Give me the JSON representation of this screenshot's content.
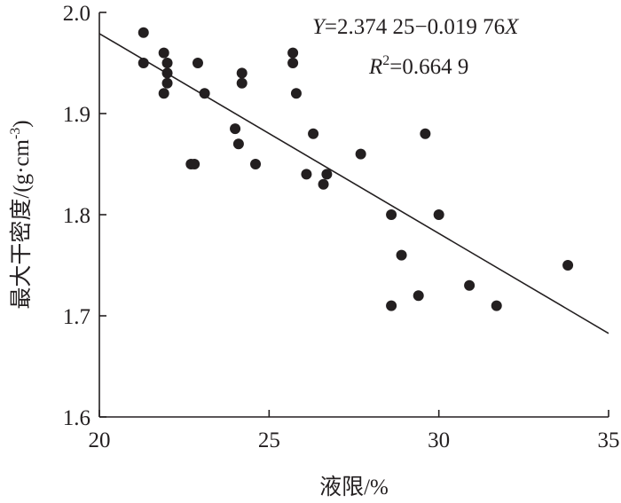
{
  "chart_data": {
    "type": "scatter",
    "xlabel": "液限/%",
    "ylabel": "最大干密度/(g·cm",
    "ylabel_sup": "-3",
    "ylabel_close": ")",
    "xlim": [
      20,
      35
    ],
    "ylim": [
      1.6,
      2.0
    ],
    "xticks": [
      "20",
      "25",
      "30",
      "35"
    ],
    "yticks": [
      "1.6",
      "1.7",
      "1.8",
      "1.9",
      "2.0"
    ],
    "grid": false,
    "legend": "none",
    "equation": {
      "y_var": "Y",
      "rhs_a": "=2.374 25−0.019 76",
      "x_var": "X",
      "r_var": "R",
      "r_sup": "2",
      "r_value": "=0.664 9"
    },
    "fit": {
      "intercept": 2.37425,
      "slope": -0.01976
    },
    "points": [
      {
        "x": 21.3,
        "y": 1.98
      },
      {
        "x": 21.3,
        "y": 1.95
      },
      {
        "x": 21.9,
        "y": 1.96
      },
      {
        "x": 22.0,
        "y": 1.95
      },
      {
        "x": 22.0,
        "y": 1.94
      },
      {
        "x": 22.0,
        "y": 1.93
      },
      {
        "x": 21.9,
        "y": 1.92
      },
      {
        "x": 22.9,
        "y": 1.95
      },
      {
        "x": 23.1,
        "y": 1.92
      },
      {
        "x": 22.7,
        "y": 1.85
      },
      {
        "x": 22.8,
        "y": 1.85
      },
      {
        "x": 24.2,
        "y": 1.94
      },
      {
        "x": 24.2,
        "y": 1.93
      },
      {
        "x": 24.0,
        "y": 1.885
      },
      {
        "x": 24.1,
        "y": 1.87
      },
      {
        "x": 24.6,
        "y": 1.85
      },
      {
        "x": 25.7,
        "y": 1.96
      },
      {
        "x": 25.7,
        "y": 1.95
      },
      {
        "x": 25.8,
        "y": 1.92
      },
      {
        "x": 26.3,
        "y": 1.88
      },
      {
        "x": 26.1,
        "y": 1.84
      },
      {
        "x": 26.7,
        "y": 1.84
      },
      {
        "x": 26.6,
        "y": 1.83
      },
      {
        "x": 27.7,
        "y": 1.86
      },
      {
        "x": 28.6,
        "y": 1.8
      },
      {
        "x": 28.6,
        "y": 1.71
      },
      {
        "x": 28.9,
        "y": 1.76
      },
      {
        "x": 29.4,
        "y": 1.72
      },
      {
        "x": 29.6,
        "y": 1.88
      },
      {
        "x": 30.0,
        "y": 1.8
      },
      {
        "x": 30.9,
        "y": 1.73
      },
      {
        "x": 31.7,
        "y": 1.71
      },
      {
        "x": 33.8,
        "y": 1.75
      }
    ]
  }
}
